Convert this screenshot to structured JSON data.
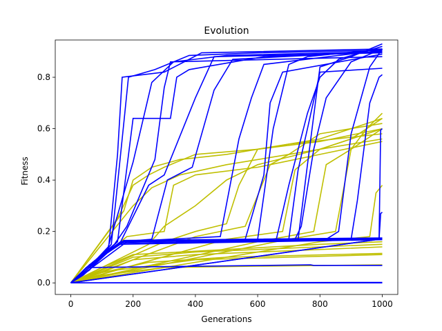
{
  "chart_data": {
    "type": "line",
    "title": "Evolution",
    "xlabel": "Generations",
    "ylabel": "Fitness",
    "xlim": [
      -50,
      1050
    ],
    "ylim": [
      -0.045,
      0.945
    ],
    "xticks": [
      0,
      200,
      400,
      600,
      800,
      1000
    ],
    "yticks": [
      0.0,
      0.2,
      0.4,
      0.6,
      0.8
    ],
    "grid": false,
    "legend": "none",
    "colors": {
      "best": "#0000ff",
      "average": "#bfbf00"
    },
    "series": [
      {
        "group": "best",
        "values": [
          [
            0,
            0
          ],
          [
            40,
            0.03
          ],
          [
            120,
            0.12
          ],
          [
            150,
            0.5
          ],
          [
            165,
            0.8
          ],
          [
            300,
            0.82
          ],
          [
            380,
            0.87
          ],
          [
            420,
            0.895
          ],
          [
            1000,
            0.91
          ]
        ]
      },
      {
        "group": "best",
        "values": [
          [
            0,
            0
          ],
          [
            60,
            0.05
          ],
          [
            130,
            0.15
          ],
          [
            170,
            0.62
          ],
          [
            185,
            0.8
          ],
          [
            270,
            0.83
          ],
          [
            380,
            0.885
          ],
          [
            600,
            0.895
          ],
          [
            1000,
            0.905
          ]
        ]
      },
      {
        "group": "best",
        "values": [
          [
            0,
            0
          ],
          [
            50,
            0.05
          ],
          [
            120,
            0.14
          ],
          [
            200,
            0.47
          ],
          [
            260,
            0.78
          ],
          [
            330,
            0.86
          ],
          [
            500,
            0.885
          ],
          [
            1000,
            0.9
          ]
        ]
      },
      {
        "group": "best",
        "values": [
          [
            0,
            0
          ],
          [
            50,
            0.06
          ],
          [
            140,
            0.15
          ],
          [
            180,
            0.22
          ],
          [
            270,
            0.48
          ],
          [
            300,
            0.76
          ],
          [
            320,
            0.86
          ],
          [
            1000,
            0.88
          ]
        ]
      },
      {
        "group": "best",
        "values": [
          [
            0,
            0
          ],
          [
            50,
            0.05
          ],
          [
            150,
            0.16
          ],
          [
            200,
            0.64
          ],
          [
            320,
            0.64
          ],
          [
            340,
            0.8
          ],
          [
            380,
            0.83
          ],
          [
            620,
            0.88
          ],
          [
            1000,
            0.9
          ]
        ]
      },
      {
        "group": "best",
        "values": [
          [
            0,
            0
          ],
          [
            80,
            0.08
          ],
          [
            160,
            0.16
          ],
          [
            250,
            0.38
          ],
          [
            300,
            0.42
          ],
          [
            360,
            0.6
          ],
          [
            400,
            0.72
          ],
          [
            460,
            0.88
          ],
          [
            1000,
            0.895
          ]
        ]
      },
      {
        "group": "best",
        "values": [
          [
            0,
            0
          ],
          [
            60,
            0.07
          ],
          [
            160,
            0.16
          ],
          [
            260,
            0.17
          ],
          [
            310,
            0.4
          ],
          [
            390,
            0.45
          ],
          [
            460,
            0.75
          ],
          [
            520,
            0.87
          ],
          [
            1000,
            0.9
          ]
        ]
      },
      {
        "group": "best",
        "values": [
          [
            0,
            0
          ],
          [
            70,
            0.08
          ],
          [
            160,
            0.16
          ],
          [
            480,
            0.18
          ],
          [
            540,
            0.56
          ],
          [
            580,
            0.72
          ],
          [
            620,
            0.85
          ],
          [
            1000,
            0.905
          ]
        ]
      },
      {
        "group": "best",
        "values": [
          [
            0,
            0
          ],
          [
            60,
            0.07
          ],
          [
            160,
            0.16
          ],
          [
            600,
            0.17
          ],
          [
            650,
            0.6
          ],
          [
            700,
            0.85
          ],
          [
            760,
            0.88
          ],
          [
            1000,
            0.91
          ]
        ]
      },
      {
        "group": "best",
        "values": [
          [
            0,
            0
          ],
          [
            60,
            0.07
          ],
          [
            170,
            0.16
          ],
          [
            560,
            0.17
          ],
          [
            620,
            0.42
          ],
          [
            640,
            0.7
          ],
          [
            680,
            0.82
          ],
          [
            1000,
            0.89
          ]
        ]
      },
      {
        "group": "best",
        "values": [
          [
            0,
            0
          ],
          [
            60,
            0.07
          ],
          [
            170,
            0.16
          ],
          [
            700,
            0.17
          ],
          [
            730,
            0.44
          ],
          [
            760,
            0.6
          ],
          [
            800,
            0.82
          ],
          [
            1000,
            0.835
          ]
        ]
      },
      {
        "group": "best",
        "values": [
          [
            0,
            0
          ],
          [
            60,
            0.07
          ],
          [
            170,
            0.16
          ],
          [
            660,
            0.17
          ],
          [
            700,
            0.38
          ],
          [
            760,
            0.66
          ],
          [
            800,
            0.8
          ],
          [
            860,
            0.87
          ],
          [
            1000,
            0.92
          ]
        ]
      },
      {
        "group": "best",
        "values": [
          [
            0,
            0
          ],
          [
            60,
            0.07
          ],
          [
            170,
            0.16
          ],
          [
            720,
            0.17
          ],
          [
            740,
            0.22
          ],
          [
            780,
            0.52
          ],
          [
            820,
            0.72
          ],
          [
            900,
            0.86
          ],
          [
            1000,
            0.91
          ]
        ]
      },
      {
        "group": "best",
        "values": [
          [
            0,
            0
          ],
          [
            60,
            0.07
          ],
          [
            170,
            0.16
          ],
          [
            730,
            0.17
          ],
          [
            760,
            0.46
          ],
          [
            800,
            0.84
          ],
          [
            900,
            0.88
          ],
          [
            1000,
            0.93
          ]
        ]
      },
      {
        "group": "best",
        "values": [
          [
            0,
            0
          ],
          [
            60,
            0.07
          ],
          [
            170,
            0.16
          ],
          [
            820,
            0.17
          ],
          [
            860,
            0.2
          ],
          [
            900,
            0.58
          ],
          [
            960,
            0.84
          ],
          [
            1000,
            0.91
          ]
        ]
      },
      {
        "group": "best",
        "values": [
          [
            0,
            0
          ],
          [
            60,
            0.07
          ],
          [
            170,
            0.16
          ],
          [
            900,
            0.17
          ],
          [
            920,
            0.32
          ],
          [
            960,
            0.7
          ],
          [
            990,
            0.8
          ],
          [
            1000,
            0.81
          ]
        ]
      },
      {
        "group": "best",
        "values": [
          [
            0,
            0
          ],
          [
            60,
            0.07
          ],
          [
            170,
            0.165
          ],
          [
            1000,
            0.175
          ]
        ]
      },
      {
        "group": "best",
        "values": [
          [
            0,
            0
          ],
          [
            50,
            0.06
          ],
          [
            160,
            0.155
          ],
          [
            1000,
            0.17
          ]
        ]
      },
      {
        "group": "best",
        "values": [
          [
            0,
            0
          ],
          [
            70,
            0.07
          ],
          [
            150,
            0.15
          ],
          [
            1000,
            0.168
          ]
        ]
      },
      {
        "group": "best",
        "values": [
          [
            0,
            0
          ],
          [
            80,
            0.07
          ],
          [
            180,
            0.16
          ],
          [
            1000,
            0.172
          ]
        ]
      },
      {
        "group": "best",
        "values": [
          [
            0,
            0
          ],
          [
            990,
            0.17
          ],
          [
            995,
            0.595
          ],
          [
            1000,
            0.6
          ]
        ]
      },
      {
        "group": "best",
        "values": [
          [
            0,
            0
          ],
          [
            990,
            0.17
          ],
          [
            995,
            0.27
          ],
          [
            1000,
            0.275
          ]
        ]
      },
      {
        "group": "best",
        "values": [
          [
            0,
            0
          ],
          [
            60,
            0.06
          ],
          [
            770,
            0.07
          ],
          [
            780,
            0.068
          ],
          [
            1000,
            0.068
          ]
        ]
      },
      {
        "group": "best",
        "values": [
          [
            0,
            0
          ],
          [
            1000,
            0
          ]
        ]
      },
      {
        "group": "best",
        "values": [
          [
            0,
            0
          ],
          [
            1000,
            0.002
          ]
        ]
      },
      {
        "group": "average",
        "values": [
          [
            0,
            0
          ],
          [
            100,
            0.05
          ],
          [
            200,
            0.1
          ],
          [
            400,
            0.12
          ],
          [
            600,
            0.13
          ],
          [
            800,
            0.14
          ],
          [
            1000,
            0.15
          ]
        ]
      },
      {
        "group": "average",
        "values": [
          [
            0,
            0
          ],
          [
            100,
            0.04
          ],
          [
            200,
            0.09
          ],
          [
            400,
            0.11
          ],
          [
            600,
            0.12
          ],
          [
            800,
            0.13
          ],
          [
            1000,
            0.14
          ]
        ]
      },
      {
        "group": "average",
        "values": [
          [
            0,
            0
          ],
          [
            100,
            0.04
          ],
          [
            250,
            0.08
          ],
          [
            500,
            0.1
          ],
          [
            1000,
            0.115
          ]
        ]
      },
      {
        "group": "average",
        "values": [
          [
            0,
            0
          ],
          [
            100,
            0.03
          ],
          [
            300,
            0.06
          ],
          [
            600,
            0.065
          ],
          [
            1000,
            0.07
          ]
        ]
      },
      {
        "group": "average",
        "values": [
          [
            0,
            0
          ],
          [
            150,
            0.05
          ],
          [
            400,
            0.09
          ],
          [
            700,
            0.1
          ],
          [
            1000,
            0.11
          ]
        ]
      },
      {
        "group": "average",
        "values": [
          [
            0,
            0
          ],
          [
            100,
            0.06
          ],
          [
            200,
            0.11
          ],
          [
            500,
            0.13
          ],
          [
            800,
            0.15
          ],
          [
            1000,
            0.16
          ]
        ]
      },
      {
        "group": "average",
        "values": [
          [
            0,
            0
          ],
          [
            150,
            0.25
          ],
          [
            200,
            0.38
          ],
          [
            250,
            0.42
          ],
          [
            300,
            0.45
          ],
          [
            400,
            0.5
          ],
          [
            600,
            0.52
          ],
          [
            800,
            0.55
          ],
          [
            1000,
            0.6
          ]
        ]
      },
      {
        "group": "average",
        "values": [
          [
            0,
            0
          ],
          [
            170,
            0.28
          ],
          [
            200,
            0.4
          ],
          [
            260,
            0.45
          ],
          [
            350,
            0.48
          ],
          [
            500,
            0.5
          ],
          [
            700,
            0.54
          ],
          [
            1000,
            0.58
          ]
        ]
      },
      {
        "group": "average",
        "values": [
          [
            0,
            0
          ],
          [
            200,
            0.3
          ],
          [
            260,
            0.37
          ],
          [
            350,
            0.42
          ],
          [
            500,
            0.46
          ],
          [
            700,
            0.5
          ],
          [
            1000,
            0.56
          ]
        ]
      },
      {
        "group": "average",
        "values": [
          [
            0,
            0
          ],
          [
            180,
            0.18
          ],
          [
            300,
            0.2
          ],
          [
            330,
            0.38
          ],
          [
            400,
            0.42
          ],
          [
            600,
            0.45
          ],
          [
            800,
            0.5
          ],
          [
            1000,
            0.55
          ]
        ]
      },
      {
        "group": "average",
        "values": [
          [
            0,
            0
          ],
          [
            250,
            0.15
          ],
          [
            300,
            0.22
          ],
          [
            400,
            0.3
          ],
          [
            500,
            0.4
          ],
          [
            600,
            0.46
          ],
          [
            800,
            0.52
          ],
          [
            1000,
            0.6
          ]
        ]
      },
      {
        "group": "average",
        "values": [
          [
            0,
            0
          ],
          [
            300,
            0.16
          ],
          [
            400,
            0.2
          ],
          [
            500,
            0.23
          ],
          [
            540,
            0.38
          ],
          [
            600,
            0.52
          ],
          [
            800,
            0.56
          ],
          [
            1000,
            0.64
          ]
        ]
      },
      {
        "group": "average",
        "values": [
          [
            0,
            0
          ],
          [
            400,
            0.18
          ],
          [
            560,
            0.22
          ],
          [
            640,
            0.46
          ],
          [
            700,
            0.5
          ],
          [
            800,
            0.58
          ],
          [
            1000,
            0.62
          ]
        ]
      },
      {
        "group": "average",
        "values": [
          [
            0,
            0
          ],
          [
            500,
            0.17
          ],
          [
            680,
            0.2
          ],
          [
            720,
            0.44
          ],
          [
            800,
            0.52
          ],
          [
            900,
            0.56
          ],
          [
            1000,
            0.64
          ]
        ]
      },
      {
        "group": "average",
        "values": [
          [
            0,
            0
          ],
          [
            600,
            0.16
          ],
          [
            780,
            0.2
          ],
          [
            820,
            0.46
          ],
          [
            900,
            0.52
          ],
          [
            1000,
            0.6
          ]
        ]
      },
      {
        "group": "average",
        "values": [
          [
            0,
            0
          ],
          [
            700,
            0.17
          ],
          [
            850,
            0.2
          ],
          [
            900,
            0.52
          ],
          [
            950,
            0.6
          ],
          [
            1000,
            0.66
          ]
        ]
      },
      {
        "group": "average",
        "values": [
          [
            0,
            0
          ],
          [
            800,
            0.16
          ],
          [
            960,
            0.18
          ],
          [
            980,
            0.35
          ],
          [
            1000,
            0.38
          ]
        ]
      }
    ]
  }
}
